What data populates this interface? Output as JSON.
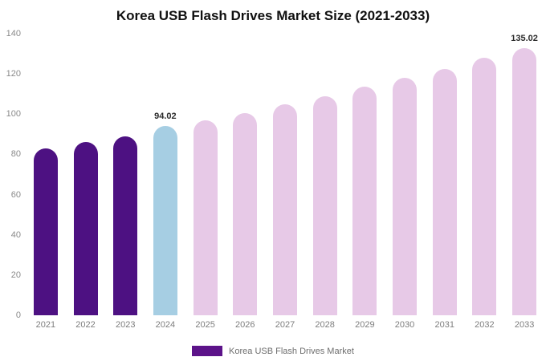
{
  "title": "Korea USB Flash Drives Market Size (2021-2033)",
  "legend": {
    "label": "Korea USB Flash Drives Market",
    "swatch_color": "#5c1389"
  },
  "colors": {
    "historical": "#4d1182",
    "current_year": "#a6cee3",
    "forecast": "#e7c9e7",
    "background": "#ffffff",
    "axis_text": "#8a8a8a",
    "title_text": "#111111"
  },
  "chart_data": {
    "type": "bar",
    "title": "Korea USB Flash Drives Market Size (2021-2033)",
    "xlabel": "",
    "ylabel": "",
    "categories": [
      "2021",
      "2022",
      "2023",
      "2024",
      "2025",
      "2026",
      "2027",
      "2028",
      "2029",
      "2030",
      "2031",
      "2032",
      "2033"
    ],
    "values": [
      83,
      86,
      89,
      94.02,
      97,
      100.5,
      105,
      109,
      113.5,
      118,
      122.5,
      128,
      135.02
    ],
    "bar_colors": [
      "#4d1182",
      "#4d1182",
      "#4d1182",
      "#a6cee3",
      "#e7c9e7",
      "#e7c9e7",
      "#e7c9e7",
      "#e7c9e7",
      "#e7c9e7",
      "#e7c9e7",
      "#e7c9e7",
      "#e7c9e7",
      "#e7c9e7"
    ],
    "annotations": [
      {
        "category": "2024",
        "text": "94.02"
      },
      {
        "category": "2033",
        "text": "135.02"
      }
    ],
    "ylim": [
      0,
      140
    ],
    "yticks": [
      0,
      20,
      40,
      60,
      80,
      100,
      120,
      140
    ],
    "grid": false,
    "legend_position": "bottom",
    "legend_entries": [
      "Korea USB Flash Drives Market"
    ]
  }
}
